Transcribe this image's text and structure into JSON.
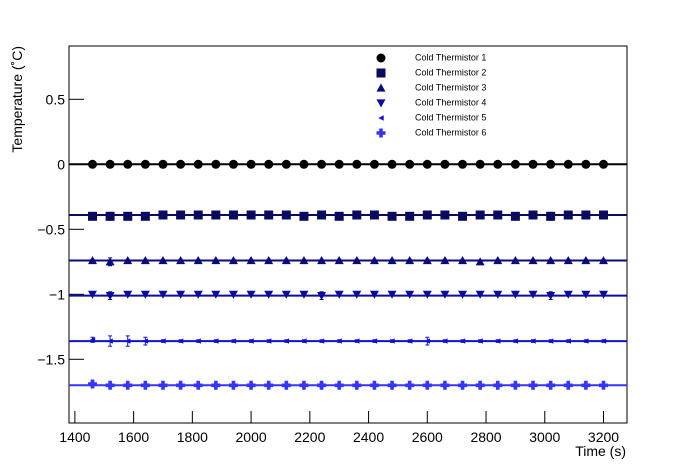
{
  "chart_data": {
    "type": "scatter",
    "x_label": "Time (s)",
    "y_label": "Temperature (˚C)",
    "x": [
      1460,
      1520,
      1580,
      1640,
      1700,
      1760,
      1820,
      1880,
      1940,
      2000,
      2060,
      2120,
      2180,
      2240,
      2300,
      2360,
      2420,
      2480,
      2540,
      2600,
      2660,
      2720,
      2780,
      2840,
      2900,
      2960,
      3020,
      3080,
      3140,
      3200
    ],
    "xlim": [
      1380,
      3280
    ],
    "ylim": [
      -1.99,
      0.91
    ],
    "xticks": [
      1400,
      1600,
      1800,
      2000,
      2200,
      2400,
      2600,
      2800,
      3000,
      3200
    ],
    "yticks": [
      {
        "value": -1.5,
        "label": "−1.5"
      },
      {
        "value": -1,
        "label": "−1"
      },
      {
        "value": -0.5,
        "label": "−0.5"
      },
      0,
      0.5
    ],
    "series": [
      {
        "name": "Cold Thermistor 1",
        "color": "#000000",
        "marker": "circle",
        "fit": 0,
        "values": [
          0,
          0,
          0,
          0,
          0,
          0,
          0,
          0,
          0,
          0,
          0,
          0,
          0,
          0,
          0,
          0,
          0,
          0,
          0,
          0,
          0,
          0,
          0,
          0,
          0,
          0,
          0,
          0,
          0,
          0
        ],
        "errors": [
          0.01,
          0.01,
          0.01,
          0.01,
          0.01,
          0.01,
          0.01,
          0.01,
          0.01,
          0.01,
          0.01,
          0.01,
          0.01,
          0.01,
          0.01,
          0.01,
          0.01,
          0.01,
          0.01,
          0.01,
          0.01,
          0.01,
          0.01,
          0.01,
          0.01,
          0.01,
          0.01,
          0.01,
          0.01,
          0.01
        ]
      },
      {
        "name": "Cold Thermistor 2",
        "color": "#0a0a5e",
        "marker": "square",
        "fit": -0.39,
        "values": [
          -0.4,
          -0.4,
          -0.4,
          -0.4,
          -0.39,
          -0.39,
          -0.39,
          -0.39,
          -0.39,
          -0.39,
          -0.39,
          -0.39,
          -0.4,
          -0.39,
          -0.4,
          -0.39,
          -0.39,
          -0.4,
          -0.4,
          -0.39,
          -0.39,
          -0.4,
          -0.39,
          -0.39,
          -0.4,
          -0.39,
          -0.4,
          -0.39,
          -0.39,
          -0.39
        ],
        "errors": [
          0.01,
          0.03,
          0.01,
          0.02,
          0.01,
          0.01,
          0.01,
          0.02,
          0.01,
          0.01,
          0.01,
          0.01,
          0.01,
          0.02,
          0.01,
          0.01,
          0.01,
          0.01,
          0.01,
          0.01,
          0.01,
          0.01,
          0.01,
          0.01,
          0.01,
          0.01,
          0.03,
          0.01,
          0.01,
          0.01
        ]
      },
      {
        "name": "Cold Thermistor 3",
        "color": "#0b0b7a",
        "marker": "triangle-up",
        "fit": -0.74,
        "values": [
          -0.74,
          -0.75,
          -0.74,
          -0.74,
          -0.74,
          -0.74,
          -0.74,
          -0.74,
          -0.74,
          -0.74,
          -0.74,
          -0.74,
          -0.74,
          -0.74,
          -0.74,
          -0.74,
          -0.74,
          -0.74,
          -0.74,
          -0.74,
          -0.74,
          -0.74,
          -0.75,
          -0.74,
          -0.74,
          -0.74,
          -0.74,
          -0.74,
          -0.74,
          -0.74
        ],
        "errors": [
          0.01,
          0.03,
          0.01,
          0.01,
          0.01,
          0.01,
          0.01,
          0.01,
          0.01,
          0.01,
          0.01,
          0.01,
          0.01,
          0.01,
          0.01,
          0.01,
          0.01,
          0.01,
          0.01,
          0.01,
          0.01,
          0.01,
          0.01,
          0.01,
          0.01,
          0.01,
          0.01,
          0.01,
          0.01,
          0.01
        ]
      },
      {
        "name": "Cold Thermistor 4",
        "color": "#0c0c9c",
        "marker": "triangle-down",
        "fit": -1.01,
        "values": [
          -1,
          -1.01,
          -1,
          -1,
          -1,
          -1,
          -1,
          -1,
          -1,
          -1,
          -1,
          -1,
          -1,
          -1.01,
          -1,
          -1,
          -1,
          -1,
          -1,
          -1,
          -1,
          -1,
          -1,
          -1,
          -1,
          -1,
          -1.01,
          -1,
          -1,
          -1
        ],
        "errors": [
          0.01,
          0.03,
          0.01,
          0.01,
          0.01,
          0.01,
          0.01,
          0.01,
          0.01,
          0.01,
          0.01,
          0.01,
          0.01,
          0.03,
          0.01,
          0.01,
          0.01,
          0.01,
          0.01,
          0.01,
          0.01,
          0.01,
          0.01,
          0.01,
          0.01,
          0.01,
          0.03,
          0.01,
          0.01,
          0.01
        ]
      },
      {
        "name": "Cold Thermistor 5",
        "color": "#1010d0",
        "marker": "triangle-left",
        "fit": -1.36,
        "values": [
          -1.35,
          -1.36,
          -1.36,
          -1.36,
          -1.36,
          -1.36,
          -1.36,
          -1.36,
          -1.36,
          -1.36,
          -1.36,
          -1.36,
          -1.36,
          -1.36,
          -1.36,
          -1.36,
          -1.36,
          -1.36,
          -1.36,
          -1.36,
          -1.36,
          -1.36,
          -1.36,
          -1.36,
          -1.36,
          -1.36,
          -1.36,
          -1.36,
          -1.36,
          -1.36
        ],
        "errors": [
          0.02,
          0.04,
          0.04,
          0.03,
          0.01,
          0.01,
          0.01,
          0.01,
          0.01,
          0.01,
          0.01,
          0.01,
          0.01,
          0.01,
          0.01,
          0.01,
          0.01,
          0.01,
          0.01,
          0.03,
          0.01,
          0.01,
          0.01,
          0.01,
          0.01,
          0.01,
          0.01,
          0.01,
          0.01,
          0.01
        ]
      },
      {
        "name": "Cold Thermistor 6",
        "color": "#3535ff",
        "marker": "cross",
        "fit": -1.7,
        "values": [
          -1.69,
          -1.7,
          -1.7,
          -1.7,
          -1.7,
          -1.7,
          -1.7,
          -1.7,
          -1.7,
          -1.7,
          -1.7,
          -1.7,
          -1.7,
          -1.7,
          -1.7,
          -1.7,
          -1.7,
          -1.7,
          -1.7,
          -1.7,
          -1.7,
          -1.7,
          -1.7,
          -1.7,
          -1.7,
          -1.7,
          -1.7,
          -1.7,
          -1.7,
          -1.7
        ],
        "errors": [
          0.02,
          0.01,
          0.01,
          0.01,
          0.01,
          0.01,
          0.01,
          0.01,
          0.01,
          0.01,
          0.01,
          0.01,
          0.01,
          0.02,
          0.01,
          0.01,
          0.01,
          0.01,
          0.01,
          0.01,
          0.01,
          0.01,
          0.01,
          0.01,
          0.01,
          0.01,
          0.01,
          0.01,
          0.01,
          0.01
        ]
      }
    ]
  }
}
